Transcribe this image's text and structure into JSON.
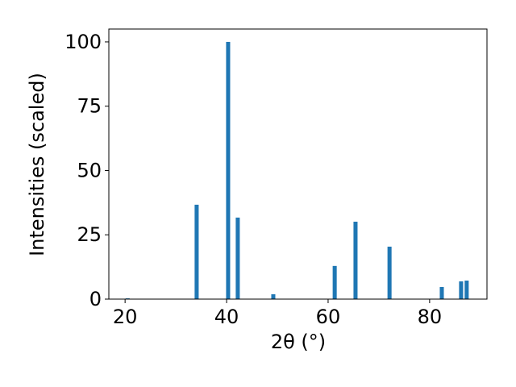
{
  "chart_data": {
    "type": "bar",
    "x_label": "2θ (°)",
    "y_label": "Intensities (scaled)",
    "x": [
      20.5,
      34.1,
      40.3,
      42.2,
      49.2,
      61.3,
      65.4,
      72.1,
      82.4,
      86.2,
      87.3
    ],
    "values": [
      0.3,
      36.7,
      100,
      31.7,
      1.9,
      12.9,
      30.1,
      20.4,
      4.7,
      6.9,
      7.2
    ],
    "color": "#1f77b4",
    "xlim": [
      16.8,
      91.3
    ],
    "xticks": [
      20,
      40,
      60,
      80
    ],
    "ylim": [
      0,
      105
    ],
    "yticks": [
      0,
      25,
      50,
      75,
      100
    ]
  }
}
